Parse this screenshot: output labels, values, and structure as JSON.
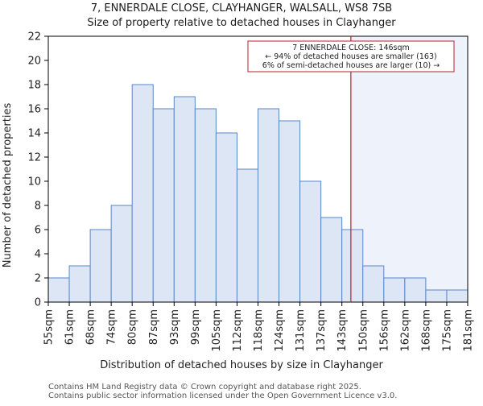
{
  "chart_data": {
    "type": "bar",
    "title": "7, ENNERDALE CLOSE, CLAYHANGER, WALSALL, WS8 7SB",
    "subtitle": "Size of property relative to detached houses in Clayhanger",
    "xlabel": "Distribution of detached houses by size in Clayhanger",
    "ylabel": "Number of detached properties",
    "ylim": [
      0,
      22
    ],
    "yticks": [
      "0",
      "2",
      "4",
      "6",
      "8",
      "10",
      "12",
      "14",
      "16",
      "18",
      "20",
      "22"
    ],
    "bin_edges": [
      55,
      61,
      68,
      74,
      80,
      87,
      93,
      99,
      105,
      112,
      118,
      124,
      131,
      137,
      143,
      150,
      156,
      162,
      168,
      175,
      181
    ],
    "bin_edge_labels": [
      "55sqm",
      "61sqm",
      "68sqm",
      "74sqm",
      "80sqm",
      "87sqm",
      "93sqm",
      "99sqm",
      "105sqm",
      "112sqm",
      "118sqm",
      "124sqm",
      "131sqm",
      "137sqm",
      "143sqm",
      "150sqm",
      "156sqm",
      "162sqm",
      "168sqm",
      "175sqm",
      "181sqm"
    ],
    "values": [
      2,
      3,
      6,
      8,
      18,
      16,
      17,
      16,
      14,
      11,
      16,
      15,
      10,
      7,
      6,
      3,
      2,
      2,
      1,
      1
    ],
    "property_size": 146,
    "grid": false,
    "colors": {
      "bar_fill": "#dce6f5",
      "bar_stroke": "#5a86c5",
      "highlight_region": "#eef3fb",
      "marker_line": "#b5202e",
      "annotation_border": "#b5202e"
    },
    "annotation": {
      "line1": "7 ENNERDALE CLOSE: 146sqm",
      "line2": "← 94% of detached houses are smaller (163)",
      "line3": "6% of semi-detached houses are larger (10) →"
    }
  },
  "footer": {
    "line1": "Contains HM Land Registry data © Crown copyright and database right 2025.",
    "line2": "Contains public sector information licensed under the Open Government Licence v3.0."
  }
}
